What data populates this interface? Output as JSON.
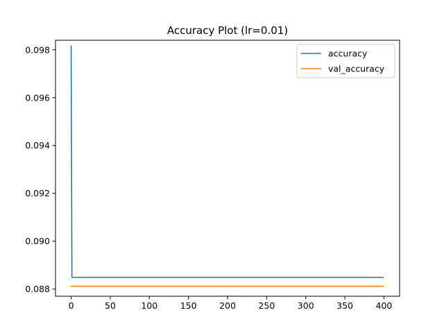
{
  "chart_data": {
    "type": "line",
    "title": "Accuracy Plot (lr=0.01)",
    "xlabel": "",
    "ylabel": "",
    "xlim": [
      -20,
      420
    ],
    "ylim": [
      0.0877,
      0.0984
    ],
    "xticks": [
      0,
      50,
      100,
      150,
      200,
      250,
      300,
      350,
      400
    ],
    "yticks": [
      0.088,
      0.09,
      0.092,
      0.094,
      0.096,
      0.098
    ],
    "ytick_labels": [
      "0.088",
      "0.090",
      "0.092",
      "0.094",
      "0.096",
      "0.098"
    ],
    "legend_location": "top-right",
    "series": [
      {
        "name": "accuracy",
        "color": "#1f77b4",
        "x": [
          0,
          1,
          399
        ],
        "y": [
          0.09815,
          0.08849,
          0.08849
        ]
      },
      {
        "name": "val_accuracy",
        "color": "#ff7f0e",
        "x": [
          0,
          399
        ],
        "y": [
          0.08812,
          0.08812
        ]
      }
    ]
  }
}
